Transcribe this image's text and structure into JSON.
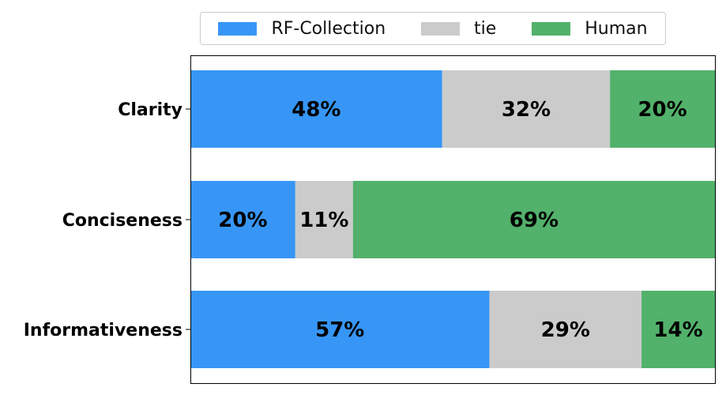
{
  "chart_data": {
    "type": "bar",
    "orientation": "horizontal",
    "stacked": true,
    "normalized_percent": true,
    "categories": [
      "Clarity",
      "Conciseness",
      "Informativeness"
    ],
    "series": [
      {
        "name": "RF-Collection",
        "color": "#3796f5",
        "values": [
          48,
          20,
          57
        ]
      },
      {
        "name": "tie",
        "color": "#cbcbcb",
        "values": [
          32,
          11,
          29
        ]
      },
      {
        "name": "Human",
        "color": "#52b16b",
        "values": [
          20,
          69,
          14
        ]
      }
    ],
    "xlim": [
      0,
      100
    ],
    "legend_position": "top-center",
    "grid": false,
    "xticks": false
  }
}
